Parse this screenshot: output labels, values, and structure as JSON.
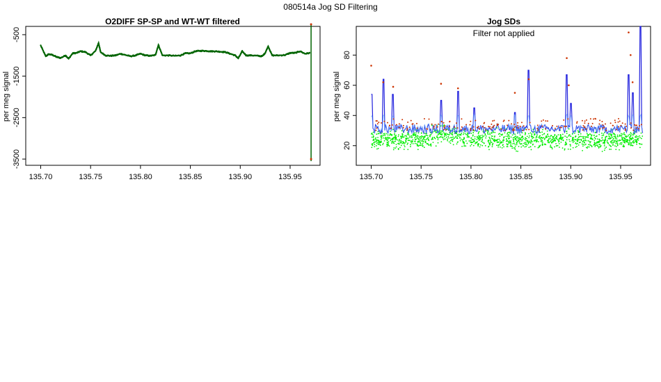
{
  "page_title": "080514a   Jog SD Filtering",
  "colors": {
    "dark_green": "#006400",
    "bright_green": "#00ee00",
    "blue": "#1f1fdd",
    "orange": "#cc3300",
    "light_blue": "#66aaff"
  },
  "chart_data": [
    {
      "type": "scatter",
      "title": "O2DIFF SP-SP and WT-WT filtered",
      "xlabel": "",
      "ylabel": "per meg signal",
      "xlim": [
        135.685,
        135.98
      ],
      "ylim": [
        -3650,
        -300
      ],
      "xticks": [
        "135.70",
        "135.75",
        "135.80",
        "135.85",
        "135.90",
        "135.95"
      ],
      "yticks": [
        "-500",
        "-1500",
        "-2500",
        "-3500"
      ],
      "series": [
        {
          "color": "#006400",
          "x": [
            135.7,
            135.705,
            135.708,
            135.712,
            135.716,
            135.72,
            135.725,
            135.728,
            135.732,
            135.736,
            135.74,
            135.745,
            135.75,
            135.755,
            135.758,
            135.76,
            135.765,
            135.77,
            135.775,
            135.78,
            135.785,
            135.79,
            135.795,
            135.8,
            135.805,
            135.81,
            135.815,
            135.818,
            135.822,
            135.828,
            135.835,
            135.84,
            135.845,
            135.85,
            135.855,
            135.86,
            135.865,
            135.87,
            135.875,
            135.88,
            135.885,
            135.89,
            135.895,
            135.898,
            135.902,
            135.906,
            135.912,
            135.918,
            135.922,
            135.925,
            135.928,
            135.932,
            135.938,
            135.945,
            135.95,
            135.955,
            135.96,
            135.965,
            135.97
          ],
          "y": [
            -760,
            -1020,
            -970,
            -990,
            -1040,
            -1060,
            -1000,
            -1080,
            -950,
            -940,
            -900,
            -920,
            -1000,
            -890,
            -700,
            -920,
            -1000,
            -1010,
            -1000,
            -960,
            -990,
            -1020,
            -1000,
            -960,
            -1000,
            -1010,
            -990,
            -750,
            -1000,
            -1000,
            -1010,
            -1000,
            -950,
            -950,
            -900,
            -890,
            -890,
            -900,
            -900,
            -910,
            -920,
            -960,
            -1000,
            -1070,
            -900,
            -1000,
            -1000,
            -1010,
            -1020,
            -940,
            -780,
            -1000,
            -1000,
            -990,
            -940,
            -940,
            -900,
            -960,
            -940
          ]
        }
      ],
      "outlier_x": 135.971,
      "outlier_range": [
        -3550,
        -250
      ]
    },
    {
      "type": "scatter",
      "title": "Jog SDs",
      "subtitle": "Filter not applied",
      "xlabel": "",
      "ylabel": "per meg signal",
      "xlim": [
        135.685,
        135.98
      ],
      "ylim": [
        7,
        99
      ],
      "xticks": [
        "135.70",
        "135.75",
        "135.80",
        "135.85",
        "135.90",
        "135.95"
      ],
      "yticks": [
        "20",
        "40",
        "60",
        "80"
      ],
      "green_band": [
        18,
        34
      ],
      "orange_spikes": [
        [
          135.7,
          73
        ],
        [
          135.712,
          62
        ],
        [
          135.722,
          59
        ],
        [
          135.77,
          61
        ],
        [
          135.787,
          58
        ],
        [
          135.844,
          55
        ],
        [
          135.858,
          64
        ],
        [
          135.896,
          78
        ],
        [
          135.898,
          60
        ],
        [
          135.958,
          95
        ],
        [
          135.96,
          80
        ],
        [
          135.962,
          62
        ]
      ],
      "blue_spikes": [
        [
          135.7,
          54
        ],
        [
          135.712,
          64
        ],
        [
          135.722,
          54
        ],
        [
          135.77,
          50
        ],
        [
          135.787,
          56
        ],
        [
          135.803,
          45
        ],
        [
          135.844,
          42
        ],
        [
          135.858,
          70
        ],
        [
          135.896,
          67
        ],
        [
          135.9,
          48
        ],
        [
          135.958,
          67
        ],
        [
          135.962,
          55
        ],
        [
          135.97,
          100
        ]
      ]
    }
  ]
}
